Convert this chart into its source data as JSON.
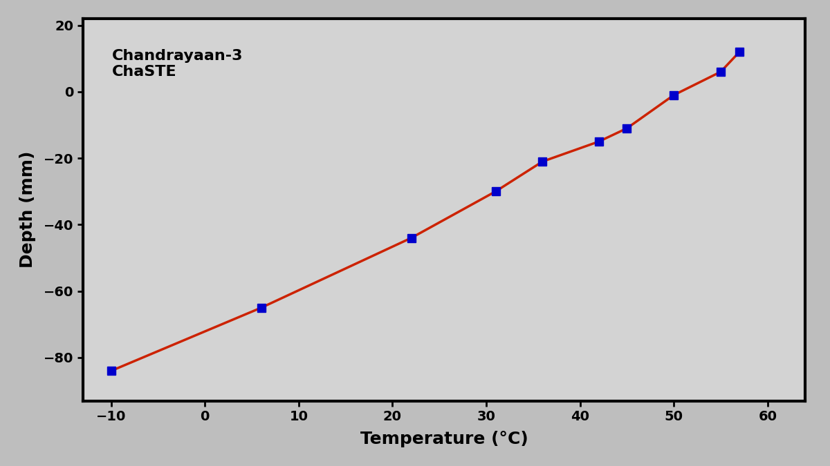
{
  "temperature": [
    -10,
    6,
    22,
    31,
    36,
    42,
    45,
    50,
    55,
    57
  ],
  "depth": [
    -84,
    -65,
    -44,
    -30,
    -21,
    -15,
    -11,
    -1,
    6,
    12
  ],
  "line_color": "#CC2200",
  "marker_color": "#0000CC",
  "marker_style": "s",
  "marker_size": 8,
  "line_width": 2.5,
  "xlabel": "Temperature (°C)",
  "ylabel": "Depth (mm)",
  "annotation": "Chandrayaan-3\nChaSTE",
  "annotation_fontsize": 16,
  "xlim": [
    -13,
    64
  ],
  "ylim": [
    -93,
    22
  ],
  "xticks": [
    -10,
    0,
    10,
    20,
    30,
    40,
    50,
    60
  ],
  "yticks": [
    20,
    0,
    -20,
    -40,
    -60,
    -80
  ],
  "outer_bg_color": "#BEBEBE",
  "plot_bg_color": "#D3D3D3",
  "tick_fontsize": 14,
  "label_fontsize": 18,
  "label_fontweight": "bold",
  "spine_linewidth": 3
}
